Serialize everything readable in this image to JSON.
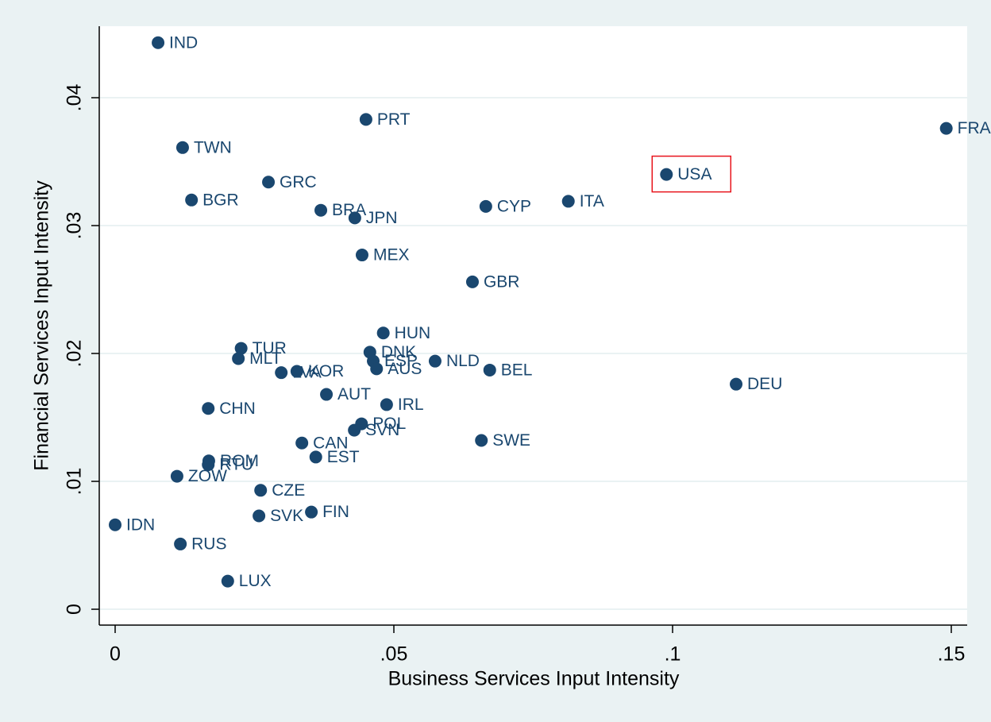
{
  "chart_data": {
    "type": "scatter",
    "xlabel": "Business Services Input Intensity",
    "ylabel": "Financial Services Input Intensity",
    "color": "#1a476f",
    "highlight_color": "#e8141c",
    "highlight_index": 4,
    "grid": true,
    "point_labels": [
      "IND",
      "PRT",
      "FRA",
      "TWN",
      "USA",
      "GRC",
      "BGR",
      "ITA",
      "BRA",
      "CYP",
      "JPN",
      "MEX",
      "GBR",
      "HUN",
      "TUR",
      "DNK",
      "MLT",
      "ESP",
      "NLD",
      "AUS",
      "BEL",
      "KOR",
      "LVA",
      "DEU",
      "AUT",
      "IRL",
      "CHN",
      "POL",
      "SVN",
      "SWE",
      "CAN",
      "EST",
      "ROM",
      "RTU",
      "ZOW",
      "CZE",
      "SVK",
      "FIN",
      "IDN",
      "RUS",
      "LUX"
    ],
    "x": [
      0.0077,
      0.045,
      0.1491,
      0.0121,
      0.0989,
      0.0275,
      0.0137,
      0.0813,
      0.0369,
      0.0665,
      0.043,
      0.0443,
      0.0641,
      0.0481,
      0.0226,
      0.0457,
      0.0221,
      0.0463,
      0.0574,
      0.0469,
      0.0672,
      0.0326,
      0.0298,
      0.1114,
      0.0379,
      0.0487,
      0.0167,
      0.0442,
      0.0429,
      0.0657,
      0.0335,
      0.036,
      0.0168,
      0.0167,
      0.0111,
      0.0261,
      0.0258,
      0.0352,
      0.0,
      0.0117,
      0.0202
    ],
    "values": [
      0.0443,
      0.0383,
      0.0376,
      0.0361,
      0.034,
      0.0334,
      0.032,
      0.0319,
      0.0312,
      0.0315,
      0.0306,
      0.0277,
      0.0256,
      0.0216,
      0.0204,
      0.0201,
      0.0196,
      0.0194,
      0.0194,
      0.0188,
      0.0187,
      0.0186,
      0.0185,
      0.0176,
      0.0168,
      0.016,
      0.0157,
      0.0145,
      0.014,
      0.0132,
      0.013,
      0.0119,
      0.0116,
      0.0113,
      0.0104,
      0.0093,
      0.0073,
      0.0076,
      0.0066,
      0.0051,
      0.0022
    ],
    "xlim": [
      -0.00285,
      0.15285
    ],
    "ylim": [
      -0.00124,
      0.04559
    ],
    "xticks": [
      {
        "value": 0,
        "label": "0"
      },
      {
        "value": 0.05,
        "label": ".05"
      },
      {
        "value": 0.1,
        "label": ".1"
      },
      {
        "value": 0.15,
        "label": ".15"
      }
    ],
    "yticks": [
      {
        "value": 0,
        "label": "0"
      },
      {
        "value": 0.01,
        "label": ".01"
      },
      {
        "value": 0.02,
        "label": ".02"
      },
      {
        "value": 0.03,
        "label": ".03"
      },
      {
        "value": 0.04,
        "label": ".04"
      }
    ]
  }
}
